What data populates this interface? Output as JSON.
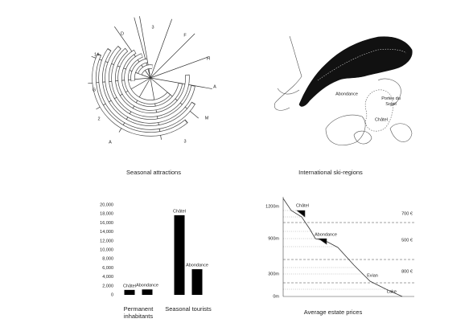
{
  "chart_data": {
    "type": "bar",
    "categories": [
      "Permanent inhabitants",
      "Seasonal tourists"
    ],
    "series": [
      {
        "name": "Châtel",
        "color": "#000000",
        "values": [
          1100,
          17700
        ]
      },
      {
        "name": "Abondance",
        "color": "#000000",
        "values": [
          1200,
          5700
        ]
      }
    ],
    "ylim": [
      0,
      20000
    ],
    "yticks": [
      0,
      {
        "value": 2000,
        "label": "2,000"
      },
      {
        "value": 4000,
        "label": "4,000"
      },
      {
        "value": 6000,
        "label": "6,000"
      },
      {
        "value": 8000,
        "label": "8,000"
      },
      {
        "value": 10000,
        "label": "10,000"
      },
      {
        "value": 12000,
        "label": "12,000"
      },
      {
        "value": 14000,
        "label": "14,000"
      },
      {
        "value": 16000,
        "label": "16,000"
      },
      {
        "value": 18000,
        "label": "18,000"
      },
      {
        "value": 20000,
        "label": "20,000"
      }
    ],
    "grid": false
  },
  "radial": {
    "caption": "Seasonal attractions",
    "labels": [
      "D",
      "3",
      "F",
      "H",
      "14",
      "A",
      "G",
      "2",
      "M",
      "A",
      "3"
    ]
  },
  "map": {
    "caption": "International ski-regions",
    "labels": [
      "Abondance",
      "Portes du Soleil",
      "Châtel"
    ]
  },
  "profile": {
    "caption": "Average estate prices",
    "altitudes": [
      "1200m",
      "900m",
      "300m",
      "0m"
    ],
    "prices": [
      "700 €",
      "500 €",
      "800 €"
    ],
    "places": [
      "Châtel",
      "Abondance",
      "Evian",
      "Lake"
    ]
  }
}
